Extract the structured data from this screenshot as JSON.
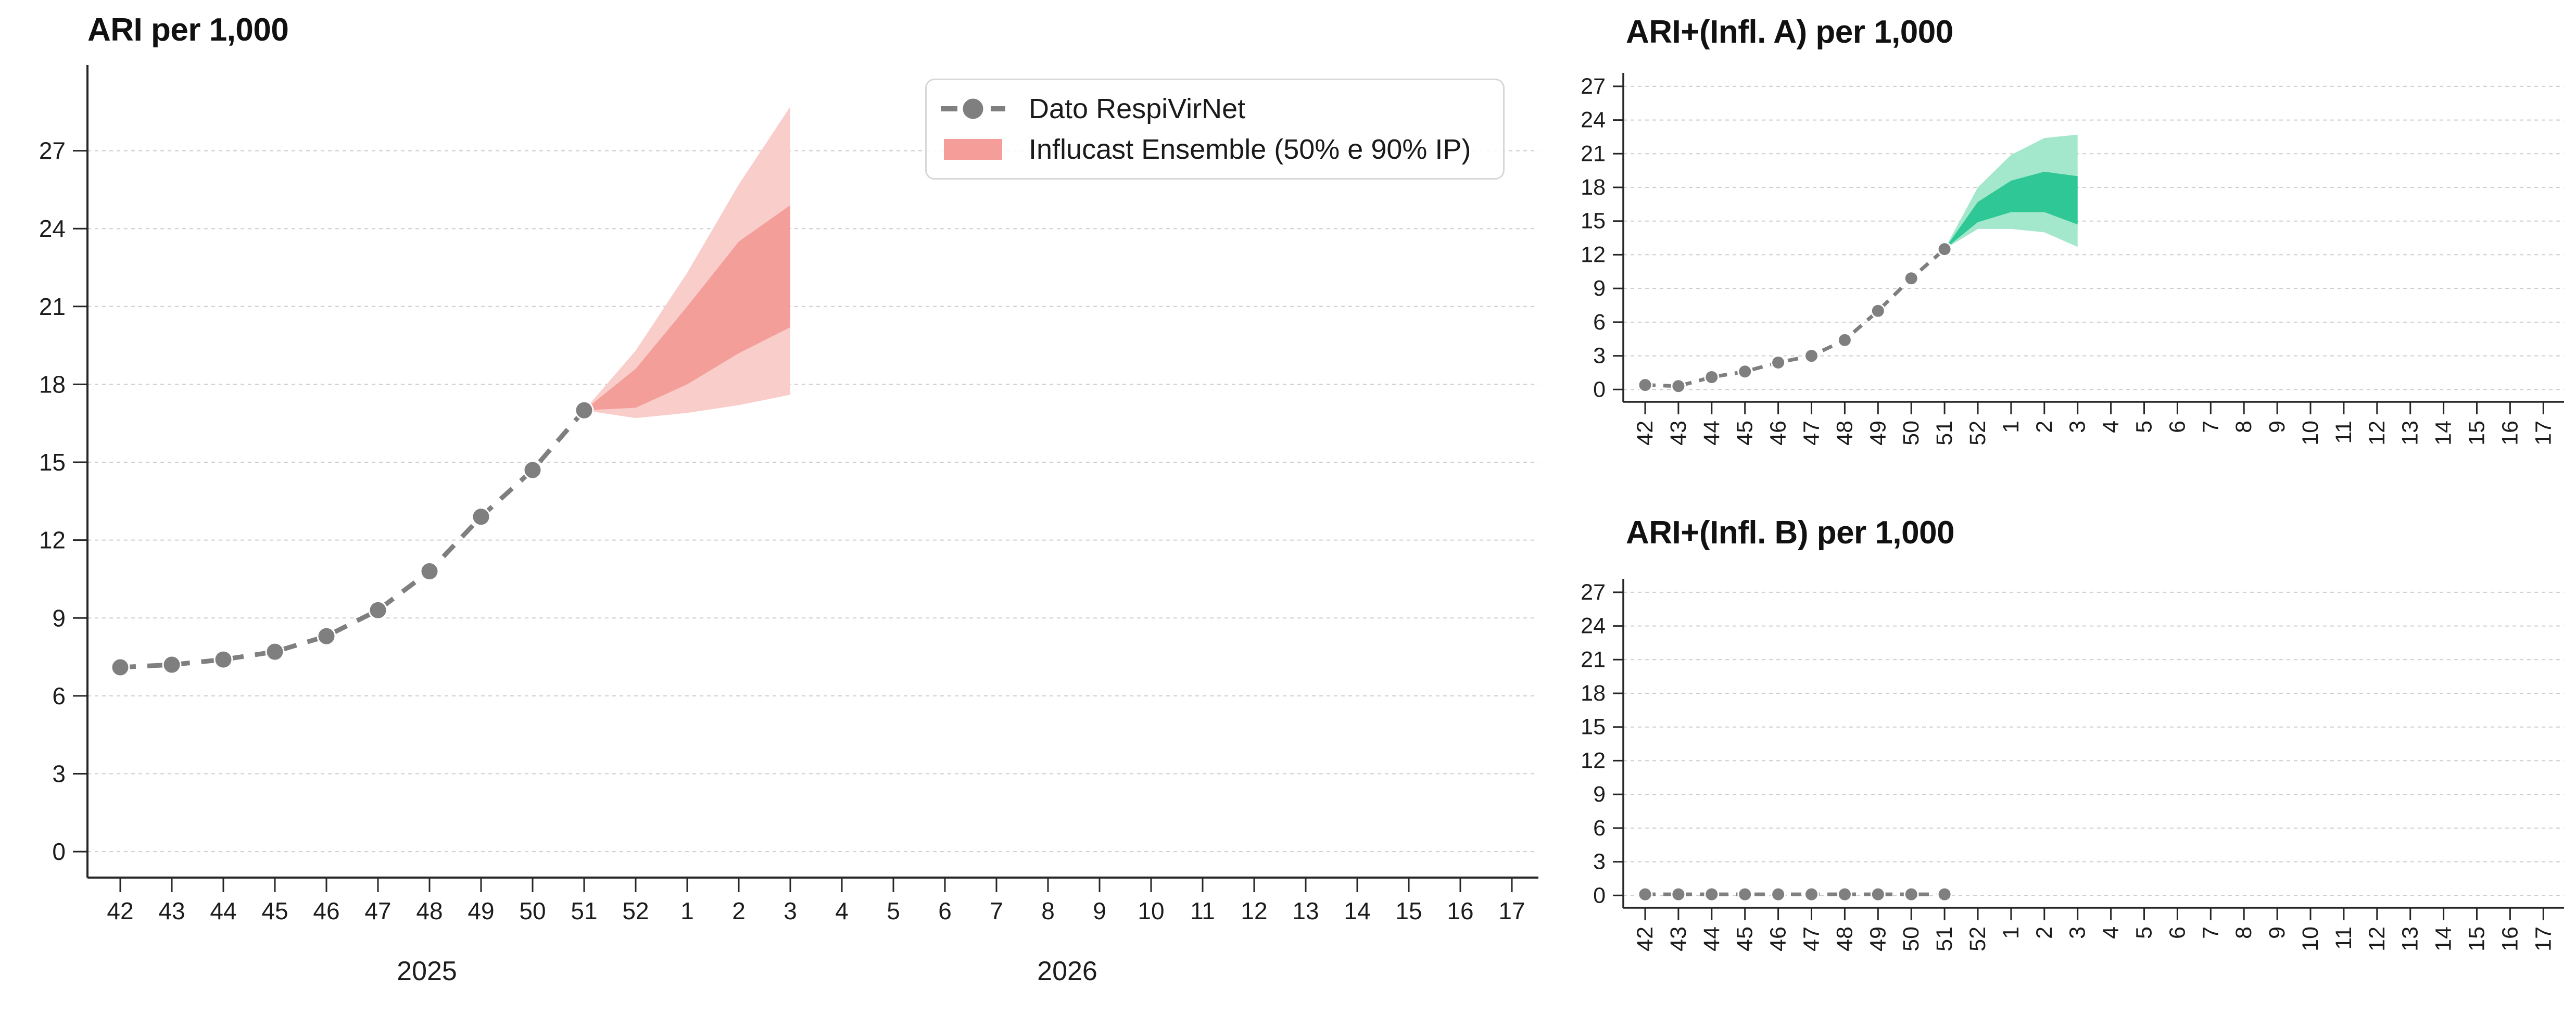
{
  "page": {
    "background": "#ffffff"
  },
  "legend": {
    "items": [
      {
        "label": "Dato RespiVirNet",
        "marker": "gray-dashed-dot",
        "color": "#7f7f7f"
      },
      {
        "label": "Influcast Ensemble (50% e 90% IP)",
        "marker": "pink-swatch",
        "color": "#f59d98"
      }
    ]
  },
  "colors": {
    "observed_gray": "#7f7f7f",
    "pink_50": "#f49e99",
    "pink_90": "#f9cdca",
    "green_50": "#2ec795",
    "green_90": "#a3e8cc",
    "gridline": "#cdcdcd",
    "spine": "#262626",
    "tick_text": "#1c1c1c"
  },
  "chart_data": [
    {
      "type": "line",
      "title": "ARI per 1,000",
      "categories": [
        "42",
        "43",
        "44",
        "45",
        "46",
        "47",
        "48",
        "49",
        "50",
        "51",
        "52",
        "1",
        "2",
        "3",
        "4",
        "5",
        "6",
        "7",
        "8",
        "9",
        "10",
        "11",
        "12",
        "13",
        "14",
        "15",
        "16",
        "17"
      ],
      "year_labels": [
        "2025",
        "2026"
      ],
      "yticks": [
        0,
        3,
        6,
        9,
        12,
        15,
        18,
        21,
        24,
        27
      ],
      "ylim": [
        -1,
        30.3
      ],
      "grid": true,
      "legend_position": "upper right",
      "series": [
        {
          "name": "Dato RespiVirNet",
          "x": [
            "42",
            "43",
            "44",
            "45",
            "46",
            "47",
            "48",
            "49",
            "50",
            "51"
          ],
          "values": [
            7.1,
            7.2,
            7.4,
            7.7,
            8.3,
            9.3,
            10.8,
            12.9,
            14.7,
            17.0
          ],
          "color": "#7f7f7f",
          "style": "dashed-line-with-dots"
        }
      ],
      "forecast": {
        "name": "Influcast Ensemble (50% e 90% IP)",
        "weeks": [
          "51",
          "52",
          "1",
          "2",
          "3"
        ],
        "p90_upper": [
          17.0,
          19.3,
          22.3,
          25.7,
          28.7
        ],
        "p50_upper": [
          17.0,
          18.6,
          21.0,
          23.5,
          24.9
        ],
        "p50_lower": [
          17.0,
          17.1,
          18.0,
          19.2,
          20.2
        ],
        "p90_lower": [
          17.0,
          16.7,
          16.9,
          17.2,
          17.6
        ],
        "color_50": "#f49e99",
        "color_90": "#f9cdca"
      }
    },
    {
      "type": "line",
      "title": "ARI+(Infl. A) per 1,000",
      "categories": [
        "42",
        "43",
        "44",
        "45",
        "46",
        "47",
        "48",
        "49",
        "50",
        "51",
        "52",
        "1",
        "2",
        "3",
        "4",
        "5",
        "6",
        "7",
        "8",
        "9",
        "10",
        "11",
        "12",
        "13",
        "14",
        "15",
        "16",
        "17"
      ],
      "yticks": [
        0,
        3,
        6,
        9,
        12,
        15,
        18,
        21,
        24,
        27
      ],
      "ylim": [
        -1.1,
        28.2
      ],
      "grid": true,
      "series": [
        {
          "name": "Dato RespiVirNet",
          "x": [
            "42",
            "43",
            "44",
            "45",
            "46",
            "47",
            "48",
            "49",
            "50",
            "51"
          ],
          "values": [
            0.4,
            0.3,
            1.1,
            1.6,
            2.4,
            3.0,
            4.4,
            7.0,
            9.9,
            12.5
          ],
          "color": "#7f7f7f",
          "style": "dashed-line-with-dots"
        }
      ],
      "forecast": {
        "name": "Influcast Ensemble (50% e 90% IP)",
        "weeks": [
          "51",
          "52",
          "1",
          "2",
          "3"
        ],
        "p90_upper": [
          12.5,
          18.0,
          20.9,
          22.4,
          22.7
        ],
        "p50_upper": [
          12.5,
          16.7,
          18.6,
          19.4,
          19.0
        ],
        "p50_lower": [
          12.5,
          14.9,
          15.8,
          15.8,
          14.7
        ],
        "p90_lower": [
          12.5,
          14.3,
          14.3,
          14.0,
          12.7
        ],
        "color_50": "#2ec795",
        "color_90": "#a3e8cc"
      }
    },
    {
      "type": "line",
      "title": "ARI+(Infl. B) per 1,000",
      "categories": [
        "42",
        "43",
        "44",
        "45",
        "46",
        "47",
        "48",
        "49",
        "50",
        "51",
        "52",
        "1",
        "2",
        "3",
        "4",
        "5",
        "6",
        "7",
        "8",
        "9",
        "10",
        "11",
        "12",
        "13",
        "14",
        "15",
        "16",
        "17"
      ],
      "yticks": [
        0,
        3,
        6,
        9,
        12,
        15,
        18,
        21,
        24,
        27
      ],
      "ylim": [
        -1.1,
        28.2
      ],
      "grid": true,
      "series": [
        {
          "name": "Dato RespiVirNet",
          "x": [
            "42",
            "43",
            "44",
            "45",
            "46",
            "47",
            "48",
            "49",
            "50",
            "51"
          ],
          "values": [
            0.1,
            0.1,
            0.1,
            0.1,
            0.1,
            0.1,
            0.1,
            0.1,
            0.1,
            0.1
          ],
          "color": "#7f7f7f",
          "style": "dashed-line-with-dots"
        }
      ],
      "forecast": null
    }
  ]
}
